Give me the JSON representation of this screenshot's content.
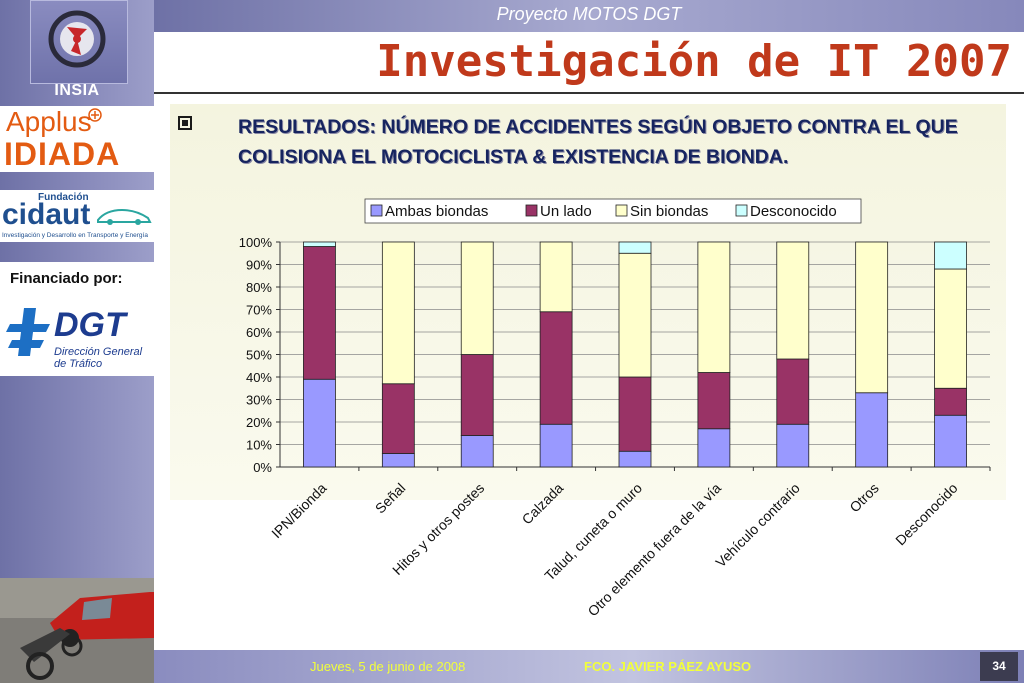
{
  "header": {
    "project": "Proyecto MOTOS DGT",
    "title": "Investigación de IT 2007"
  },
  "sidebar": {
    "insia": "INSIA",
    "applus_line1": "Applus",
    "applus_line2": "IDIADA",
    "cidaut_fundacion": "Fundación",
    "cidaut_name": "cidaut",
    "cidaut_sub": "Investigación y Desarrollo en Transporte y Energía",
    "financed_by": "Financiado por:",
    "dgt_name": "DGT",
    "dgt_sub_1": "Dirección General",
    "dgt_sub_2": "de Tráfico"
  },
  "heading": "RESULTADOS: NÚMERO DE ACCIDENTES SEGÚN OBJETO CONTRA EL QUE COLISIONA EL MOTOCICLISTA & EXISTENCIA DE BIONDA.",
  "footer": {
    "date": "Jueves, 5 de junio de 2008",
    "author": "FCO. JAVIER PÁEZ AYUSO",
    "page": "34"
  },
  "chart_data": {
    "type": "bar",
    "stacked": true,
    "percent": true,
    "legend_position": "top",
    "grid": true,
    "ylim": [
      0,
      100
    ],
    "y_ticks": [
      "0%",
      "10%",
      "20%",
      "30%",
      "40%",
      "50%",
      "60%",
      "70%",
      "80%",
      "90%",
      "100%"
    ],
    "categories": [
      "IPN/Bionda",
      "Señal",
      "Hitos y otros postes",
      "Calzada",
      "Talud, cuneta o muro",
      "Otro elemento fuera de la vía",
      "Vehículo contrario",
      "Otros",
      "Desconocido"
    ],
    "series": [
      {
        "name": "Ambas biondas",
        "color": "#9999ff",
        "values": [
          39,
          6,
          14,
          19,
          7,
          17,
          19,
          33,
          23
        ]
      },
      {
        "name": "Un lado",
        "color": "#993366",
        "values": [
          59,
          31,
          36,
          50,
          33,
          25,
          29,
          0,
          12
        ]
      },
      {
        "name": "Sin biondas",
        "color": "#ffffcc",
        "values": [
          0,
          63,
          50,
          31,
          55,
          58,
          52,
          67,
          53
        ]
      },
      {
        "name": "Desconocido",
        "color": "#ccffff",
        "values": [
          2,
          0,
          0,
          0,
          5,
          0,
          0,
          0,
          12
        ]
      }
    ]
  }
}
